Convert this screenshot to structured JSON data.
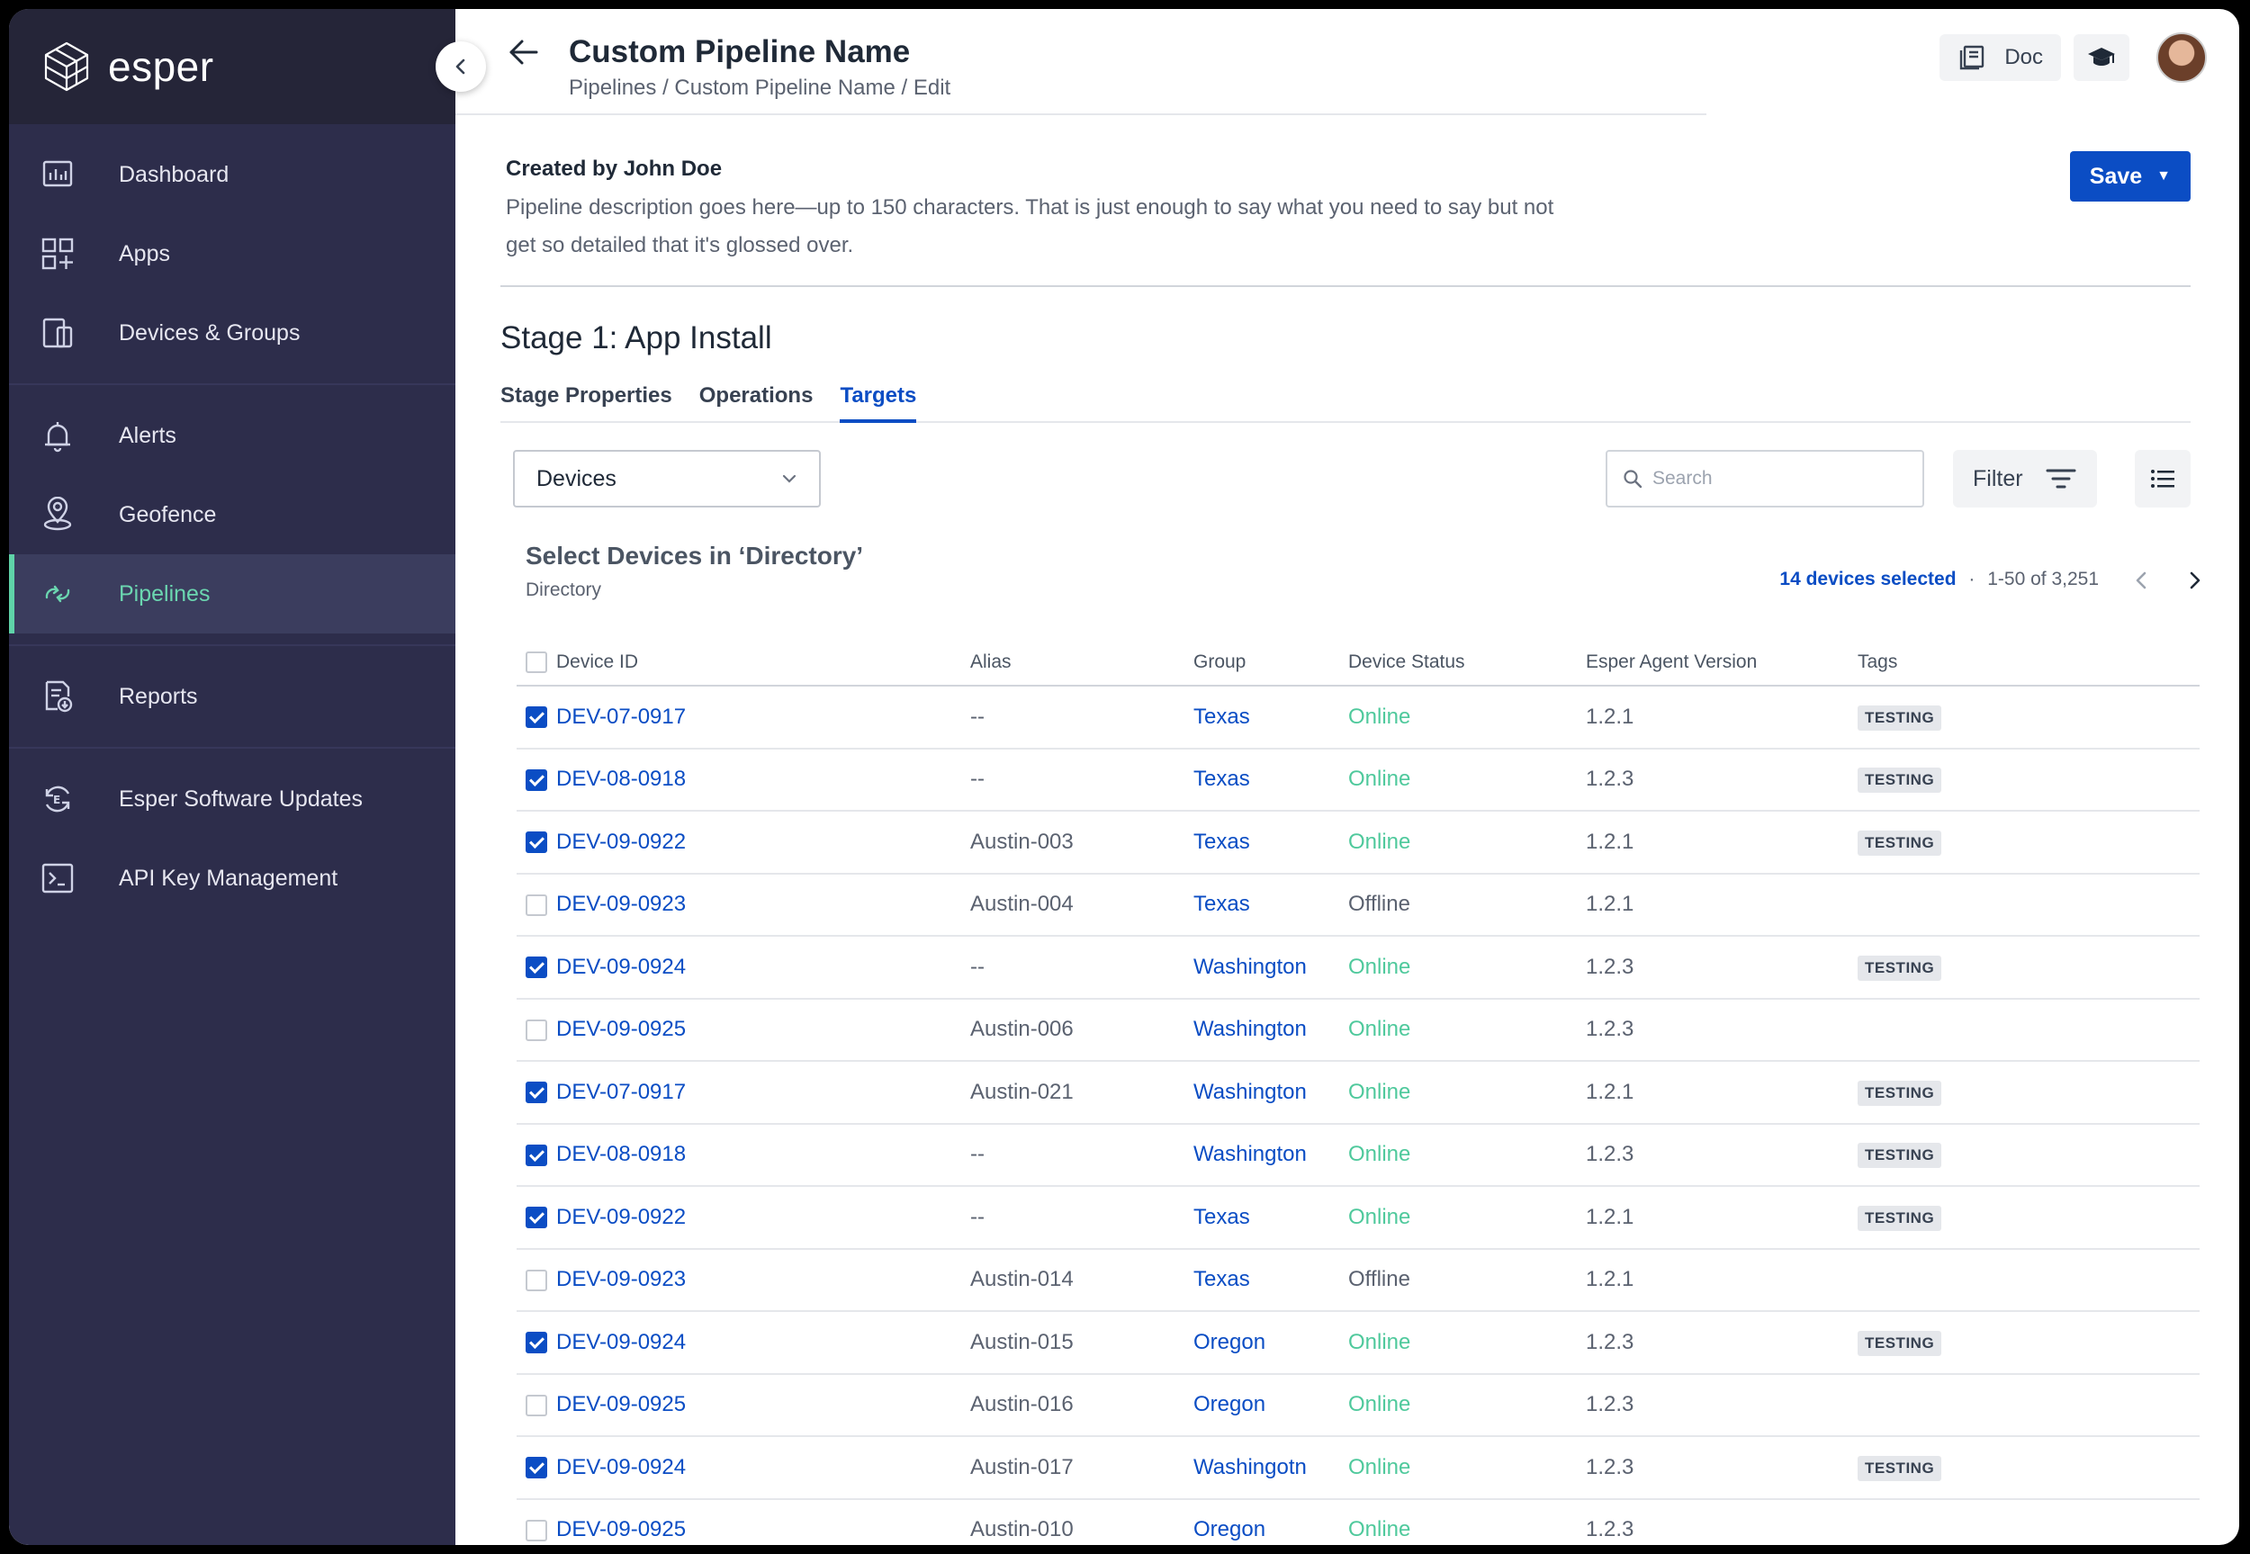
{
  "brand": {
    "name": "esper"
  },
  "sidebar": {
    "groups": [
      [
        {
          "label": "Dashboard",
          "icon": "dashboard-icon"
        },
        {
          "label": "Apps",
          "icon": "apps-icon"
        },
        {
          "label": "Devices & Groups",
          "icon": "devices-icon"
        }
      ],
      [
        {
          "label": "Alerts",
          "icon": "bell-icon"
        },
        {
          "label": "Geofence",
          "icon": "geofence-icon"
        },
        {
          "label": "Pipelines",
          "icon": "pipeline-icon",
          "active": true
        }
      ],
      [
        {
          "label": "Reports",
          "icon": "reports-icon"
        }
      ],
      [
        {
          "label": "Esper Software Updates",
          "icon": "software-update-icon"
        },
        {
          "label": "API Key Management",
          "icon": "terminal-icon"
        }
      ]
    ]
  },
  "header": {
    "title": "Custom Pipeline Name",
    "breadcrumb": "Pipelines / Custom Pipeline Name / Edit",
    "doc_label": "Doc"
  },
  "meta": {
    "creator": "Created by John Doe",
    "description": "Pipeline description goes here—up to 150 characters. That is just enough to say what you need to say but not get so detailed that it's glossed over.",
    "save_label": "Save"
  },
  "stage": {
    "title": "Stage 1: App Install",
    "tabs": [
      "Stage Properties",
      "Operations",
      "Targets"
    ],
    "active_tab": 2
  },
  "toolbar": {
    "dropdown_value": "Devices",
    "search_placeholder": "Search",
    "filter_label": "Filter"
  },
  "section": {
    "title": "Select Devices in ‘Directory’",
    "subtitle": "Directory",
    "selected_count": "14 devices selected",
    "separator": "·",
    "range": "1-50 of 3,251"
  },
  "table": {
    "columns": [
      "Device ID",
      "Alias",
      "Group",
      "Device Status",
      "Esper Agent Version",
      "Tags"
    ],
    "rows": [
      {
        "checked": true,
        "id": "DEV-07-0917",
        "alias": "--",
        "group": "Texas",
        "status": "Online",
        "version": "1.2.1",
        "tag": "TESTING"
      },
      {
        "checked": true,
        "id": "DEV-08-0918",
        "alias": "--",
        "group": "Texas",
        "status": "Online",
        "version": "1.2.3",
        "tag": "TESTING"
      },
      {
        "checked": true,
        "id": "DEV-09-0922",
        "alias": "Austin-003",
        "group": "Texas",
        "status": "Online",
        "version": "1.2.1",
        "tag": "TESTING"
      },
      {
        "checked": false,
        "id": "DEV-09-0923",
        "alias": "Austin-004",
        "group": "Texas",
        "status": "Offline",
        "version": "1.2.1",
        "tag": ""
      },
      {
        "checked": true,
        "id": "DEV-09-0924",
        "alias": "--",
        "group": "Washington",
        "status": "Online",
        "version": "1.2.3",
        "tag": "TESTING"
      },
      {
        "checked": false,
        "id": "DEV-09-0925",
        "alias": "Austin-006",
        "group": "Washington",
        "status": "Online",
        "version": "1.2.3",
        "tag": ""
      },
      {
        "checked": true,
        "id": "DEV-07-0917",
        "alias": "Austin-021",
        "group": "Washington",
        "status": "Online",
        "version": "1.2.1",
        "tag": "TESTING"
      },
      {
        "checked": true,
        "id": "DEV-08-0918",
        "alias": "--",
        "group": "Washington",
        "status": "Online",
        "version": "1.2.3",
        "tag": "TESTING"
      },
      {
        "checked": true,
        "id": "DEV-09-0922",
        "alias": "--",
        "group": "Texas",
        "status": "Online",
        "version": "1.2.1",
        "tag": "TESTING"
      },
      {
        "checked": false,
        "id": "DEV-09-0923",
        "alias": "Austin-014",
        "group": "Texas",
        "status": "Offline",
        "version": "1.2.1",
        "tag": ""
      },
      {
        "checked": true,
        "id": "DEV-09-0924",
        "alias": "Austin-015",
        "group": "Oregon",
        "status": "Online",
        "version": "1.2.3",
        "tag": "TESTING"
      },
      {
        "checked": false,
        "id": "DEV-09-0925",
        "alias": "Austin-016",
        "group": "Oregon",
        "status": "Online",
        "version": "1.2.3",
        "tag": ""
      },
      {
        "checked": true,
        "id": "DEV-09-0924",
        "alias": "Austin-017",
        "group": "Washingotn",
        "status": "Online",
        "version": "1.2.3",
        "tag": "TESTING"
      },
      {
        "checked": false,
        "id": "DEV-09-0925",
        "alias": "Austin-010",
        "group": "Oregon",
        "status": "Online",
        "version": "1.2.3",
        "tag": ""
      }
    ]
  },
  "colors": {
    "sidebar_bg": "#2d2d4b",
    "accent_blue": "#0b4dc4",
    "online_green": "#4fc99c",
    "active_nav_green": "#6bd6b0"
  }
}
